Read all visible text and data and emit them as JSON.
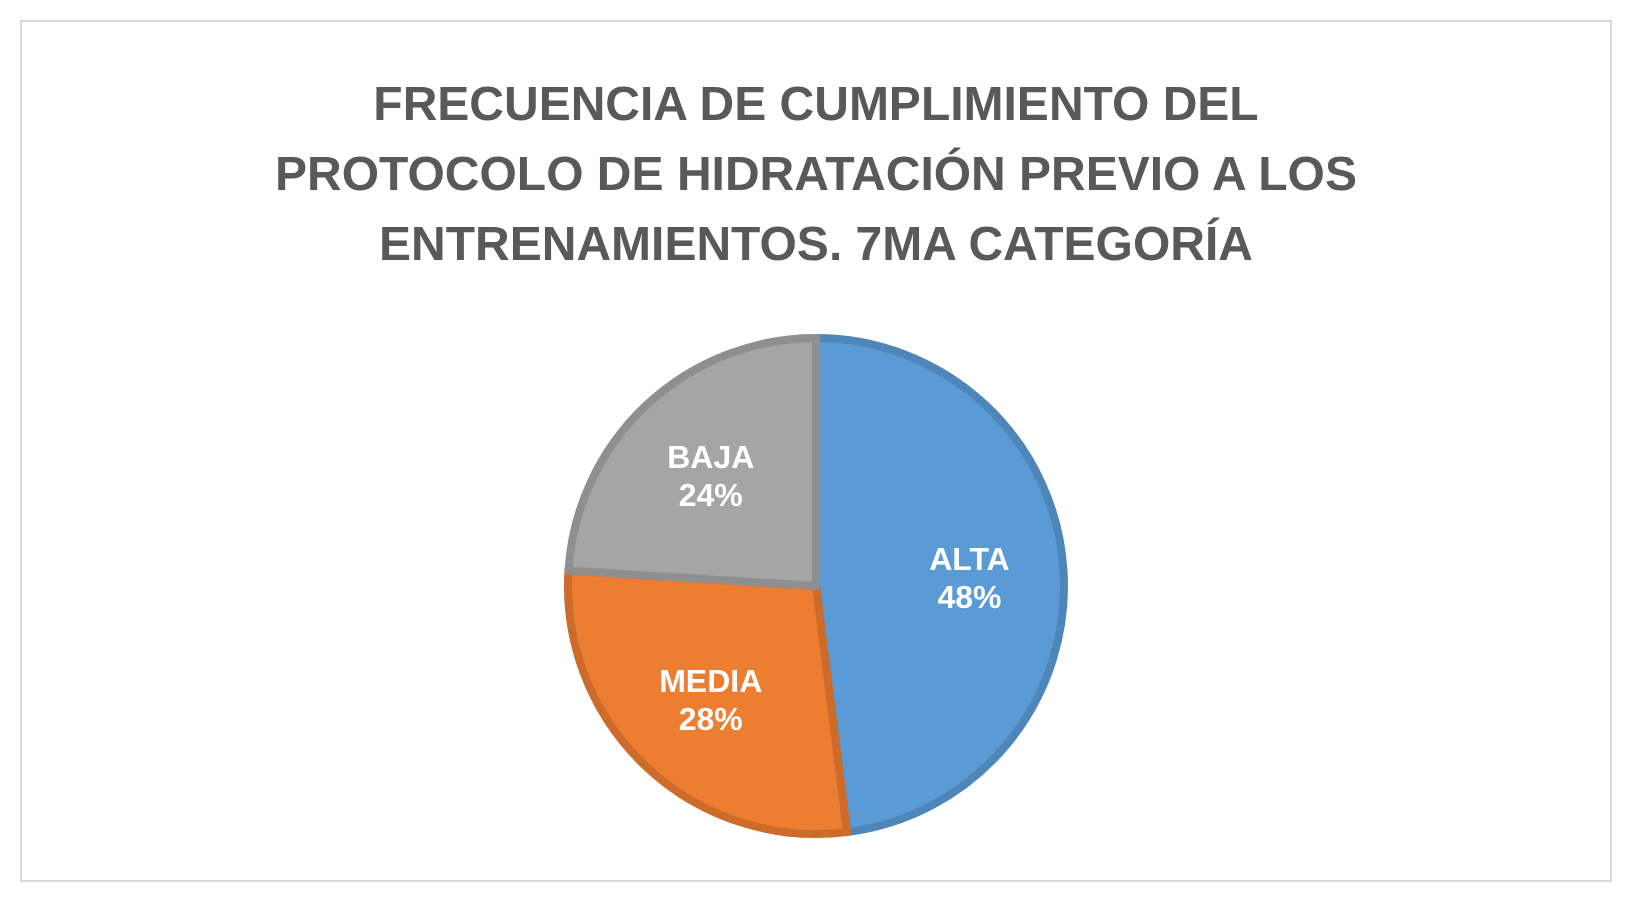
{
  "chart_data": {
    "type": "pie",
    "title": "FRECUENCIA DE CUMPLIMIENTO DEL PROTOCOLO DE HIDRATACIÓN PREVIO A LOS ENTRENAMIENTOS. 7MA CATEGORÍA",
    "categories": [
      "ALTA",
      "MEDIA",
      "BAJA"
    ],
    "values": [
      48,
      28,
      24
    ],
    "value_labels": [
      "48%",
      "28%",
      "24%"
    ],
    "colors": [
      "#5b9bd5",
      "#ed7d31",
      "#a5a5a5"
    ],
    "legend": false
  }
}
